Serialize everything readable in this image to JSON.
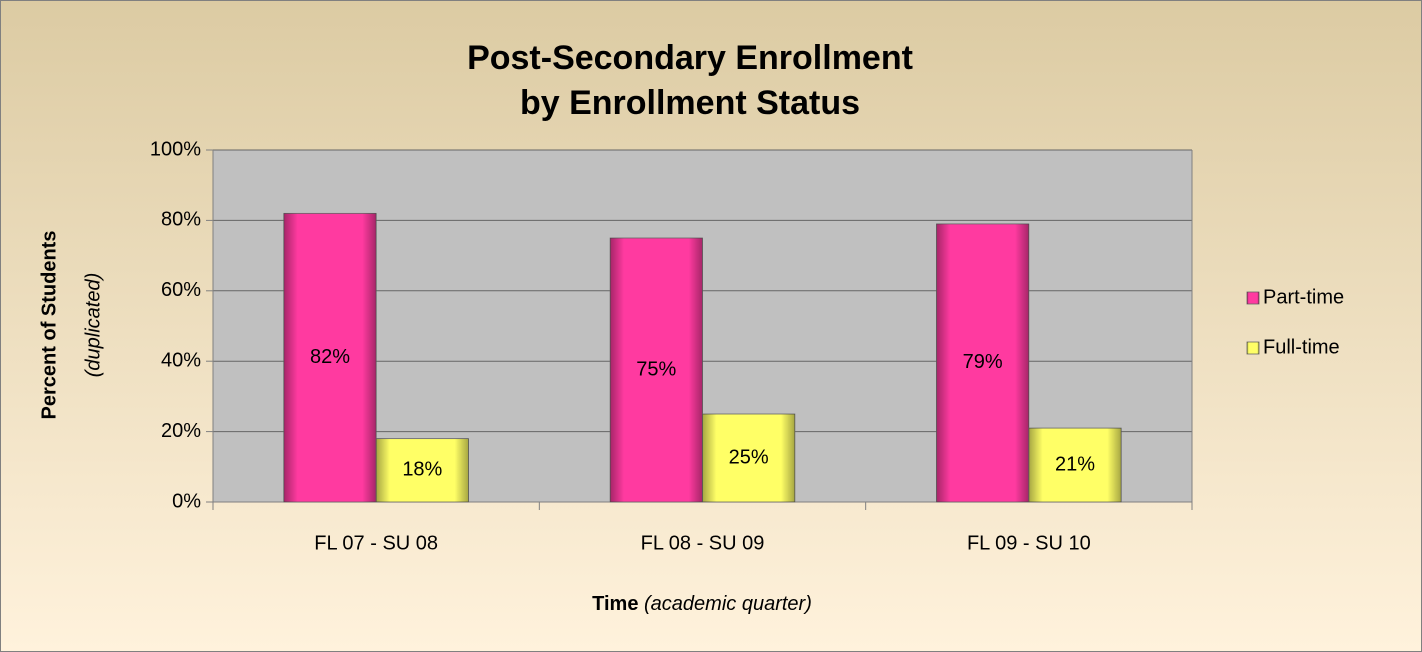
{
  "chart_data": {
    "type": "bar",
    "title_lines": [
      "Post-Secondary Enrollment",
      "by Enrollment Status"
    ],
    "ylabel": "Percent of Students",
    "ylabel_note": "(duplicated)",
    "xlabel": "Time",
    "xlabel_note": "(academic quarter)",
    "categories": [
      "FL 07 - SU 08",
      "FL 08 - SU 09",
      "FL 09 - SU 10"
    ],
    "series": [
      {
        "name": "Part-time",
        "color": "#ff3aa0",
        "values": [
          82,
          75,
          79
        ],
        "value_labels": [
          "82%",
          "75%",
          "79%"
        ]
      },
      {
        "name": "Full-time",
        "color": "#ffff66",
        "values": [
          18,
          25,
          21
        ],
        "value_labels": [
          "18%",
          "25%",
          "21%"
        ]
      }
    ],
    "ylim": [
      0,
      100
    ],
    "yticks": [
      {
        "value": 0,
        "label": "0%"
      },
      {
        "value": 20,
        "label": "20%"
      },
      {
        "value": 40,
        "label": "40%"
      },
      {
        "value": 60,
        "label": "60%"
      },
      {
        "value": 80,
        "label": "80%"
      },
      {
        "value": 100,
        "label": "100%"
      }
    ],
    "grid": true,
    "legend": "right"
  }
}
